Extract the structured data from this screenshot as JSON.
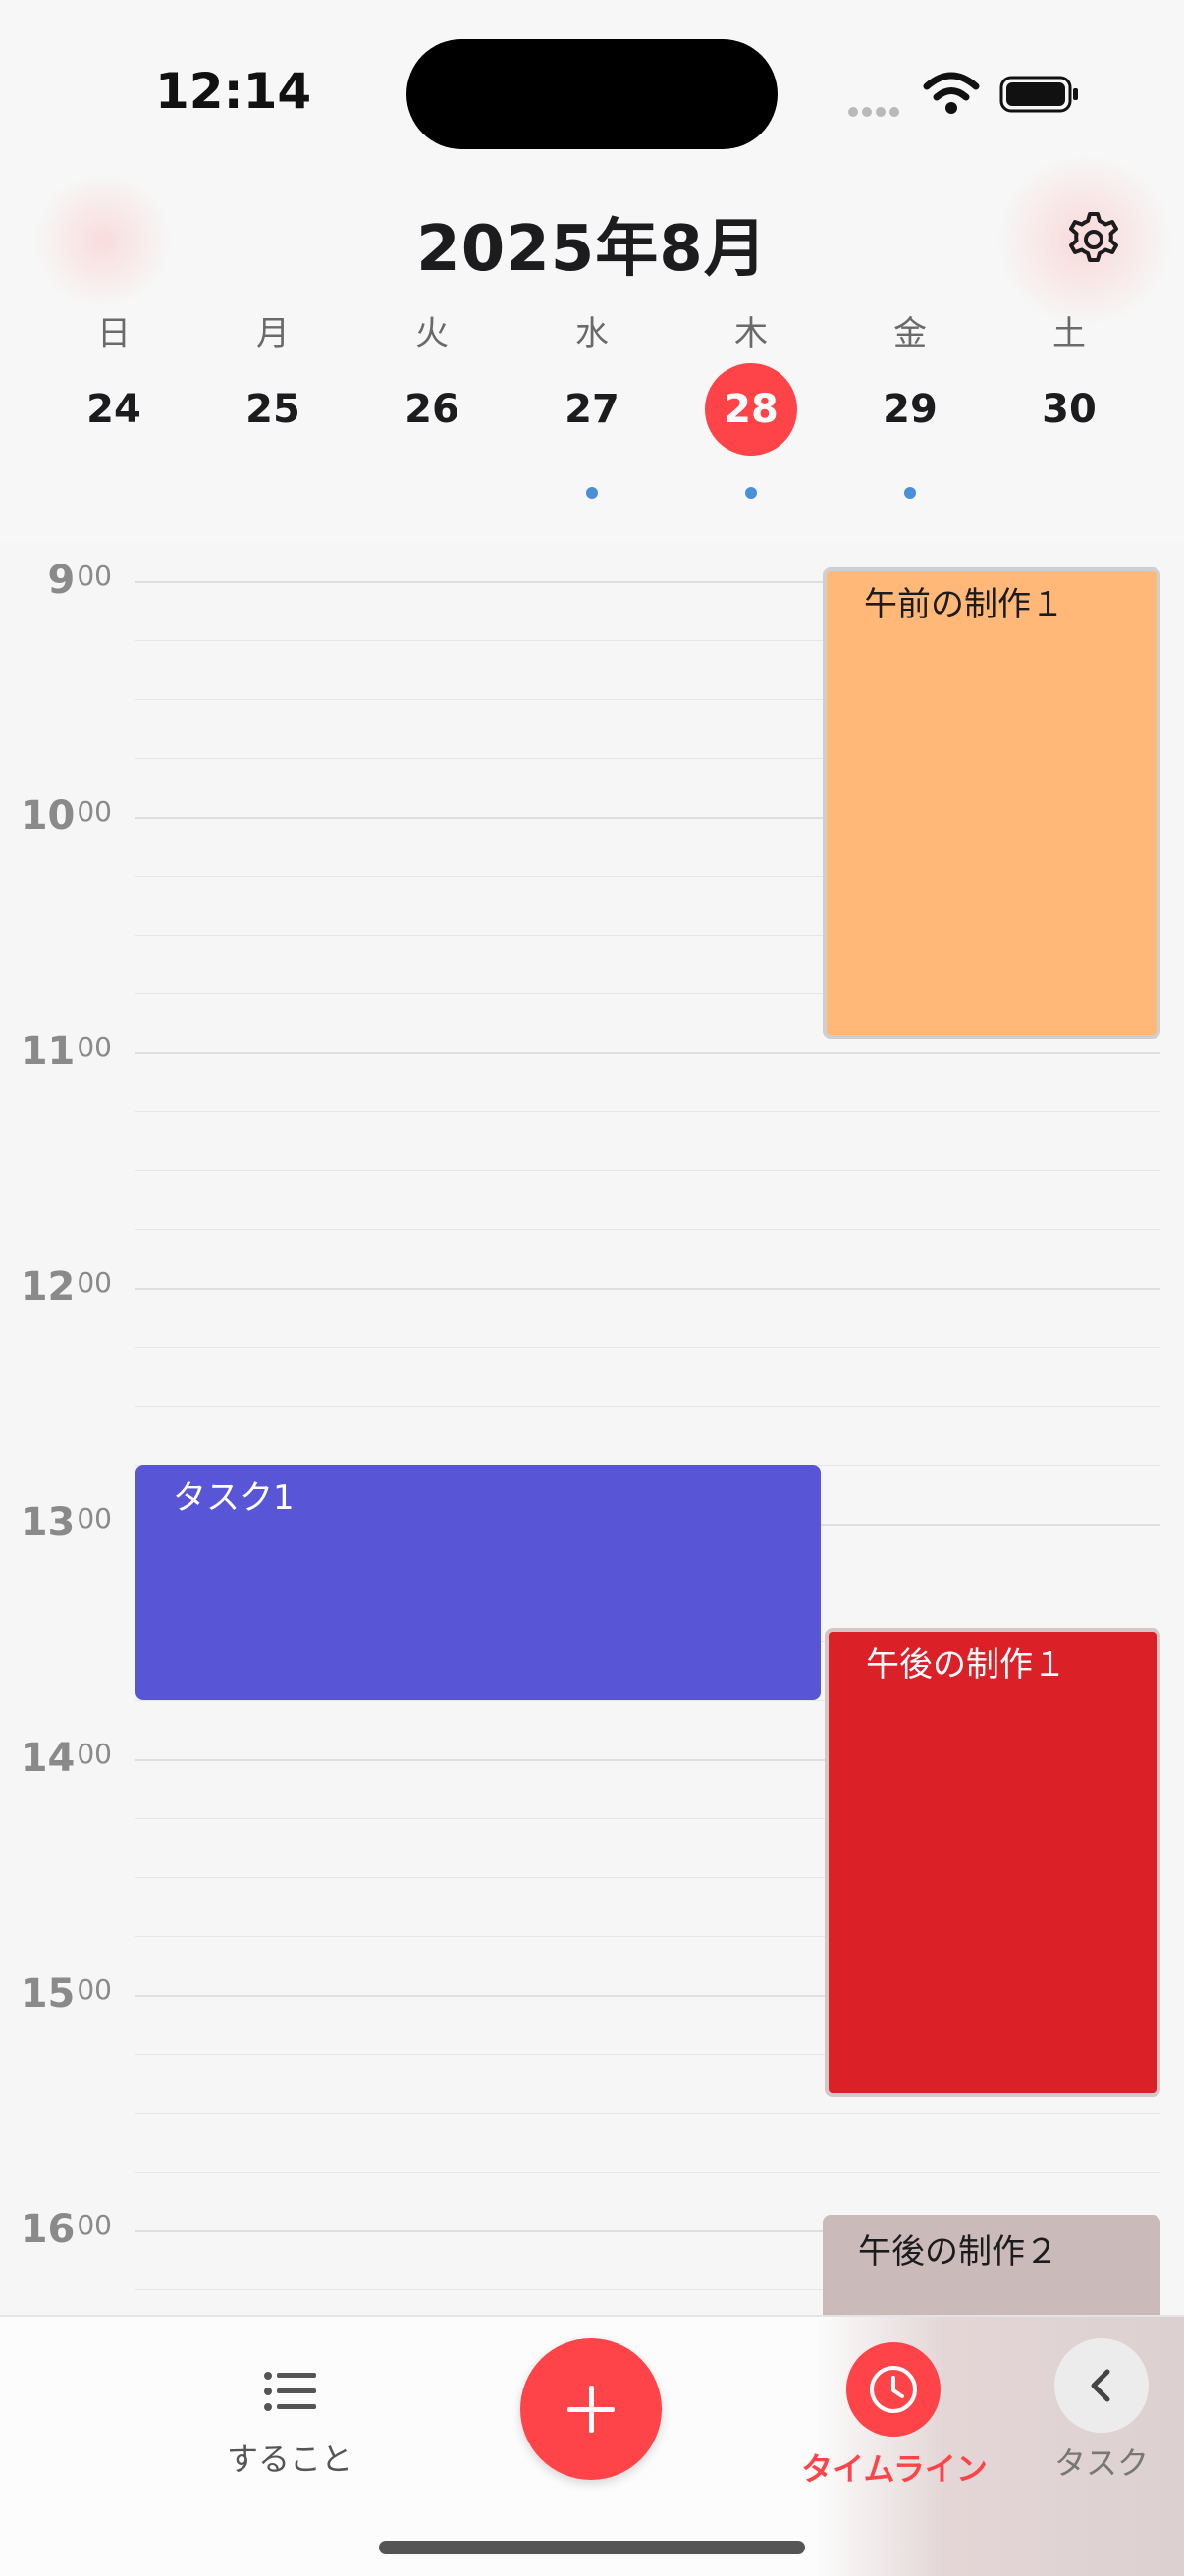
{
  "status_bar": {
    "time": "12:14"
  },
  "header": {
    "month_title": "2025年8月",
    "settings_icon": "gear-icon"
  },
  "week": {
    "days": [
      {
        "weekday": "日",
        "date": "24",
        "selected": false,
        "has_event": false
      },
      {
        "weekday": "月",
        "date": "25",
        "selected": false,
        "has_event": false
      },
      {
        "weekday": "火",
        "date": "26",
        "selected": false,
        "has_event": false
      },
      {
        "weekday": "水",
        "date": "27",
        "selected": false,
        "has_event": true
      },
      {
        "weekday": "木",
        "date": "28",
        "selected": true,
        "has_event": true
      },
      {
        "weekday": "金",
        "date": "29",
        "selected": false,
        "has_event": true
      },
      {
        "weekday": "土",
        "date": "30",
        "selected": false,
        "has_event": false
      }
    ],
    "accent_color": "#fe4448",
    "dot_color": "#4a90d9"
  },
  "timeline": {
    "hours": [
      {
        "h": "9",
        "m": "00"
      },
      {
        "h": "10",
        "m": "00"
      },
      {
        "h": "11",
        "m": "00"
      },
      {
        "h": "12",
        "m": "00"
      },
      {
        "h": "13",
        "m": "00"
      },
      {
        "h": "14",
        "m": "00"
      },
      {
        "h": "15",
        "m": "00"
      },
      {
        "h": "16",
        "m": "00"
      }
    ],
    "events": [
      {
        "title": "午前の制作１",
        "color": "#ffb877"
      },
      {
        "title": "タスク1",
        "color": "#5856d6"
      },
      {
        "title": "午後の制作１",
        "color": "#dc2027"
      },
      {
        "title": "午後の制作２",
        "color": "#cbbaba"
      }
    ]
  },
  "tab_bar": {
    "todo_label": "すること",
    "todo_icon": "list-icon",
    "add_icon": "plus-icon",
    "timeline_label": "タイムライン",
    "timeline_icon": "clock-icon",
    "task_label": "タスク",
    "task_icon": "chevron-left-icon"
  }
}
